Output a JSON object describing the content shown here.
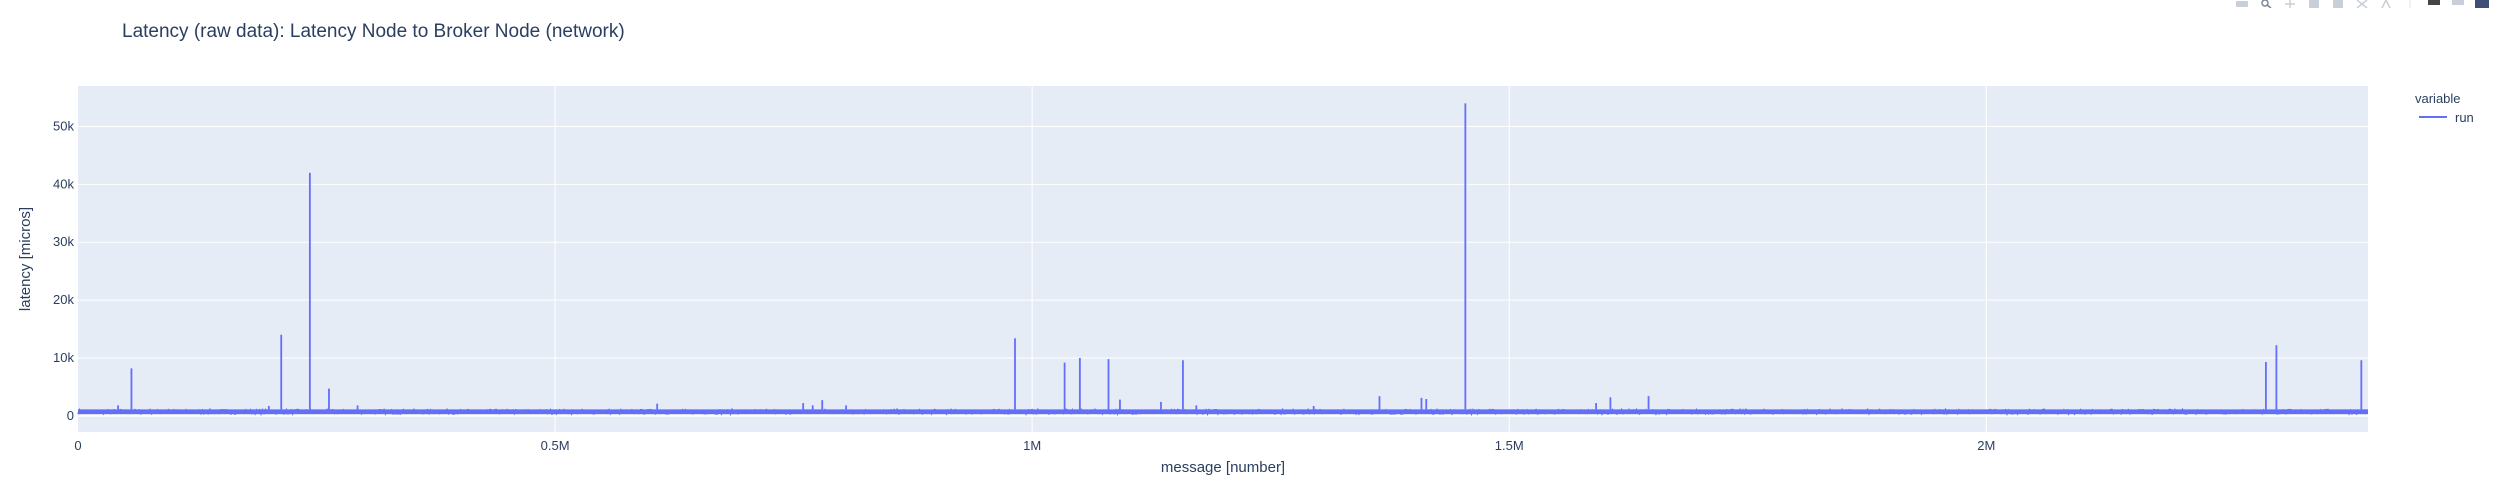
{
  "title": "Latency (raw data): Latency Node to Broker Node (network)",
  "legend": {
    "title": "variable",
    "placement": "top-right"
  },
  "colors": {
    "plot_bg": "#e5ecf6",
    "grid": "#ffffff",
    "line": "#636efa",
    "text": "#2a3f5f"
  },
  "modebar": {
    "icons": [
      "camera-icon",
      "zoom-icon",
      "pan-icon",
      "zoom-in-icon",
      "zoom-out-icon",
      "autoscale-icon",
      "reset-axes-icon",
      "spike-lines-icon",
      "hover-closest-icon",
      "hover-compare-icon",
      "plotly-logo-icon"
    ]
  },
  "chart_data": {
    "type": "line",
    "xlabel": "message [number]",
    "ylabel": "latency [micros]",
    "xlim": [
      0,
      2400000
    ],
    "ylim": [
      -2800,
      57000
    ],
    "grid": true,
    "x_ticks": [
      {
        "value": 0,
        "label": "0"
      },
      {
        "value": 500000,
        "label": "0.5M"
      },
      {
        "value": 1000000,
        "label": "1M"
      },
      {
        "value": 1500000,
        "label": "1.5M"
      },
      {
        "value": 2000000,
        "label": "2M"
      }
    ],
    "y_ticks": [
      {
        "value": 0,
        "label": "0"
      },
      {
        "value": 10000,
        "label": "10k"
      },
      {
        "value": 20000,
        "label": "20k"
      },
      {
        "value": 30000,
        "label": "30k"
      },
      {
        "value": 40000,
        "label": "40k"
      },
      {
        "value": 50000,
        "label": "50k"
      }
    ],
    "series": [
      {
        "name": "run",
        "baseline": {
          "min": 300,
          "max": 1100
        },
        "spikes": [
          {
            "x": 42000,
            "y": 1800
          },
          {
            "x": 56000,
            "y": 8200
          },
          {
            "x": 95000,
            "y": 1200
          },
          {
            "x": 140000,
            "y": 1100
          },
          {
            "x": 200000,
            "y": 1700
          },
          {
            "x": 213000,
            "y": 14000
          },
          {
            "x": 243000,
            "y": 42000
          },
          {
            "x": 263000,
            "y": 4700
          },
          {
            "x": 293000,
            "y": 1800
          },
          {
            "x": 340000,
            "y": 1000
          },
          {
            "x": 417000,
            "y": 900
          },
          {
            "x": 607000,
            "y": 2100
          },
          {
            "x": 760000,
            "y": 2200
          },
          {
            "x": 770000,
            "y": 1800
          },
          {
            "x": 780000,
            "y": 2700
          },
          {
            "x": 805000,
            "y": 1800
          },
          {
            "x": 982000,
            "y": 13400
          },
          {
            "x": 1034000,
            "y": 9200
          },
          {
            "x": 1050000,
            "y": 10000
          },
          {
            "x": 1080000,
            "y": 9800
          },
          {
            "x": 1092000,
            "y": 2800
          },
          {
            "x": 1135000,
            "y": 2400
          },
          {
            "x": 1158000,
            "y": 9600
          },
          {
            "x": 1172000,
            "y": 1800
          },
          {
            "x": 1295000,
            "y": 1700
          },
          {
            "x": 1364000,
            "y": 3400
          },
          {
            "x": 1408000,
            "y": 3100
          },
          {
            "x": 1413000,
            "y": 2900
          },
          {
            "x": 1454000,
            "y": 54000
          },
          {
            "x": 1591000,
            "y": 2200
          },
          {
            "x": 1606000,
            "y": 3200
          },
          {
            "x": 1646000,
            "y": 3400
          },
          {
            "x": 1840000,
            "y": 1100
          },
          {
            "x": 1910000,
            "y": 1000
          },
          {
            "x": 2293000,
            "y": 9300
          },
          {
            "x": 2304000,
            "y": 12200
          },
          {
            "x": 2393000,
            "y": 9600
          }
        ]
      }
    ]
  }
}
